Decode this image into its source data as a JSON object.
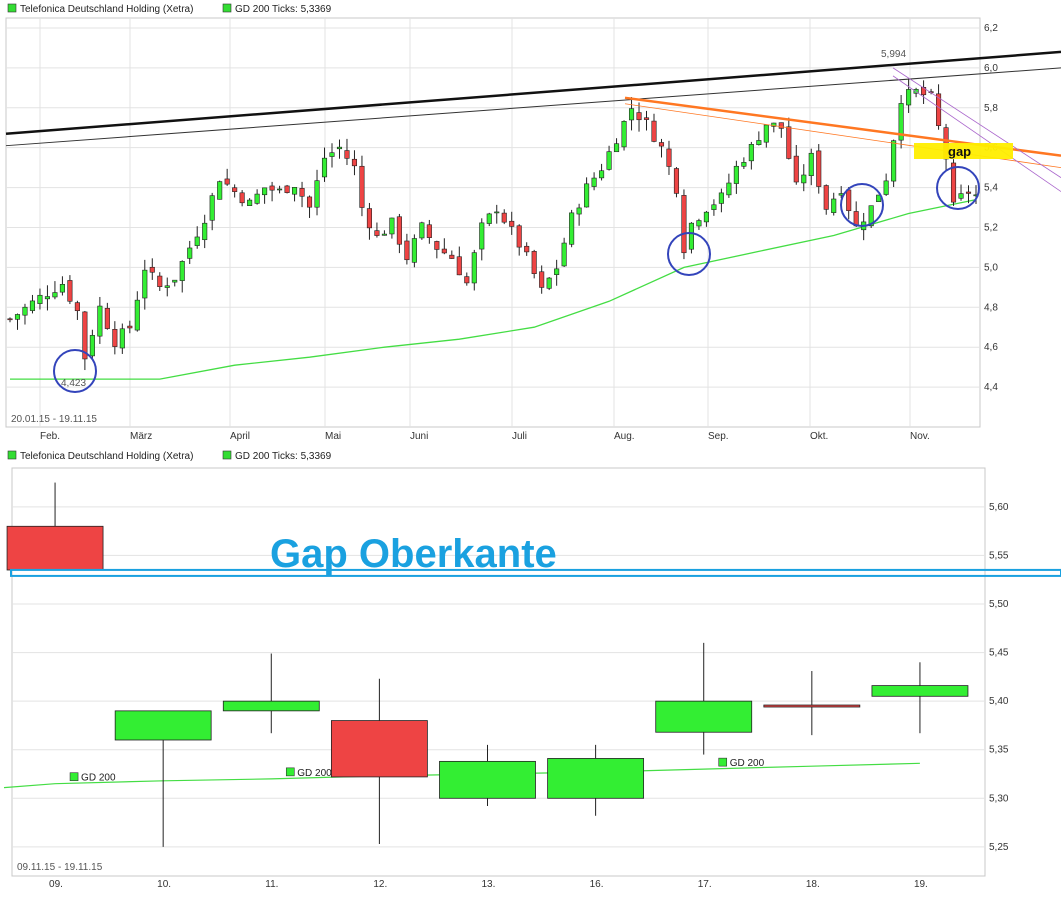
{
  "chart_data": [
    {
      "type": "candlestick",
      "legend": [
        {
          "name": "Telefonica Deutschland Holding (Xetra)",
          "color": "#33dd33"
        },
        {
          "name": "GD 200 Ticks: 5,3369",
          "color": "#33dd33"
        }
      ],
      "date_range_label": "20.01.15 - 19.11.15",
      "x_tick_labels": [
        "Feb.",
        "März",
        "April",
        "Mai",
        "Juni",
        "Juli",
        "Aug.",
        "Sep.",
        "Okt.",
        "Nov."
      ],
      "y_tick_labels": [
        "4,4",
        "4,6",
        "4,8",
        "5,0",
        "5,2",
        "5,4",
        "5,6",
        "5,8",
        "6,0",
        "6,2"
      ],
      "ylim": [
        4.2,
        6.25
      ],
      "annotations": {
        "low_label": "4,423",
        "high_label": "5,994",
        "gap_label": "gap"
      },
      "close_path": [
        [
          0,
          4.74
        ],
        [
          4,
          4.85
        ],
        [
          7,
          4.92
        ],
        [
          9,
          4.78
        ],
        [
          10,
          4.55
        ],
        [
          12,
          4.8
        ],
        [
          14,
          4.63
        ],
        [
          16,
          4.7
        ],
        [
          18,
          5.0
        ],
        [
          20,
          4.9
        ],
        [
          22,
          4.95
        ],
        [
          24,
          5.1
        ],
        [
          26,
          5.25
        ],
        [
          28,
          5.45
        ],
        [
          30,
          5.38
        ],
        [
          32,
          5.32
        ],
        [
          34,
          5.4
        ],
        [
          36,
          5.38
        ],
        [
          38,
          5.42
        ],
        [
          40,
          5.3
        ],
        [
          42,
          5.55
        ],
        [
          44,
          5.6
        ],
        [
          46,
          5.5
        ],
        [
          47,
          5.3
        ],
        [
          49,
          5.15
        ],
        [
          51,
          5.22
        ],
        [
          53,
          5.05
        ],
        [
          55,
          5.2
        ],
        [
          57,
          5.1
        ],
        [
          59,
          5.05
        ],
        [
          61,
          4.92
        ],
        [
          63,
          5.2
        ],
        [
          65,
          5.3
        ],
        [
          67,
          5.18
        ],
        [
          69,
          5.05
        ],
        [
          71,
          4.88
        ],
        [
          73,
          5.0
        ],
        [
          75,
          5.25
        ],
        [
          77,
          5.4
        ],
        [
          79,
          5.5
        ],
        [
          81,
          5.65
        ],
        [
          83,
          5.8
        ],
        [
          85,
          5.72
        ],
        [
          87,
          5.6
        ],
        [
          89,
          5.4
        ],
        [
          90,
          5.1
        ],
        [
          91,
          5.22
        ],
        [
          93,
          5.3
        ],
        [
          95,
          5.35
        ],
        [
          97,
          5.5
        ],
        [
          99,
          5.6
        ],
        [
          101,
          5.72
        ],
        [
          103,
          5.7
        ],
        [
          105,
          5.4
        ],
        [
          107,
          5.55
        ],
        [
          109,
          5.3
        ],
        [
          111,
          5.4
        ],
        [
          113,
          5.2
        ],
        [
          115,
          5.3
        ],
        [
          117,
          5.45
        ],
        [
          119,
          5.85
        ],
        [
          121,
          5.88
        ],
        [
          123,
          5.85
        ],
        [
          124,
          5.7
        ],
        [
          125,
          5.55
        ],
        [
          126,
          5.3
        ],
        [
          127,
          5.35
        ],
        [
          128,
          5.38
        ],
        [
          129,
          5.36
        ]
      ],
      "gd200_path": [
        [
          0,
          4.44
        ],
        [
          14,
          4.44
        ],
        [
          20,
          4.44
        ],
        [
          30,
          4.51
        ],
        [
          40,
          4.55
        ],
        [
          50,
          4.6
        ],
        [
          60,
          4.64
        ],
        [
          70,
          4.7
        ],
        [
          80,
          4.83
        ],
        [
          90,
          5.0
        ],
        [
          100,
          5.08
        ],
        [
          110,
          5.16
        ],
        [
          120,
          5.27
        ],
        [
          129,
          5.34
        ]
      ]
    },
    {
      "type": "candlestick",
      "legend": [
        {
          "name": "Telefonica Deutschland Holding (Xetra)",
          "color": "#33dd33"
        },
        {
          "name": "GD 200 Ticks: 5,3369",
          "color": "#33dd33"
        }
      ],
      "date_range_label": "09.11.15 - 19.11.15",
      "categories": [
        "09.",
        "10.",
        "11.",
        "12.",
        "13.",
        "16.",
        "17.",
        "18.",
        "19."
      ],
      "y_tick_labels": [
        "5,25",
        "5,30",
        "5,35",
        "5,40",
        "5,45",
        "5,50",
        "5,55",
        "5,60"
      ],
      "ylim": [
        5.22,
        5.64
      ],
      "ohlc": [
        {
          "open": 5.58,
          "high": 5.625,
          "low": 5.535,
          "close": 5.535
        },
        {
          "open": 5.36,
          "high": 5.39,
          "low": 5.25,
          "close": 5.39
        },
        {
          "open": 5.39,
          "high": 5.449,
          "low": 5.367,
          "close": 5.4
        },
        {
          "open": 5.38,
          "high": 5.423,
          "low": 5.253,
          "close": 5.322
        },
        {
          "open": 5.3,
          "high": 5.355,
          "low": 5.292,
          "close": 5.338
        },
        {
          "open": 5.3,
          "high": 5.355,
          "low": 5.282,
          "close": 5.341
        },
        {
          "open": 5.368,
          "high": 5.46,
          "low": 5.345,
          "close": 5.4
        },
        {
          "open": 5.396,
          "high": 5.431,
          "low": 5.365,
          "close": 5.394
        },
        {
          "open": 5.405,
          "high": 5.44,
          "low": 5.367,
          "close": 5.416
        }
      ],
      "gd200_values": [
        5.315,
        5.318,
        5.32,
        5.323,
        5.325,
        5.327,
        5.33,
        5.333,
        5.336
      ],
      "gd200_label": "GD 200",
      "annotation_text": "Gap Oberkante",
      "annotation_level": 5.532
    }
  ]
}
